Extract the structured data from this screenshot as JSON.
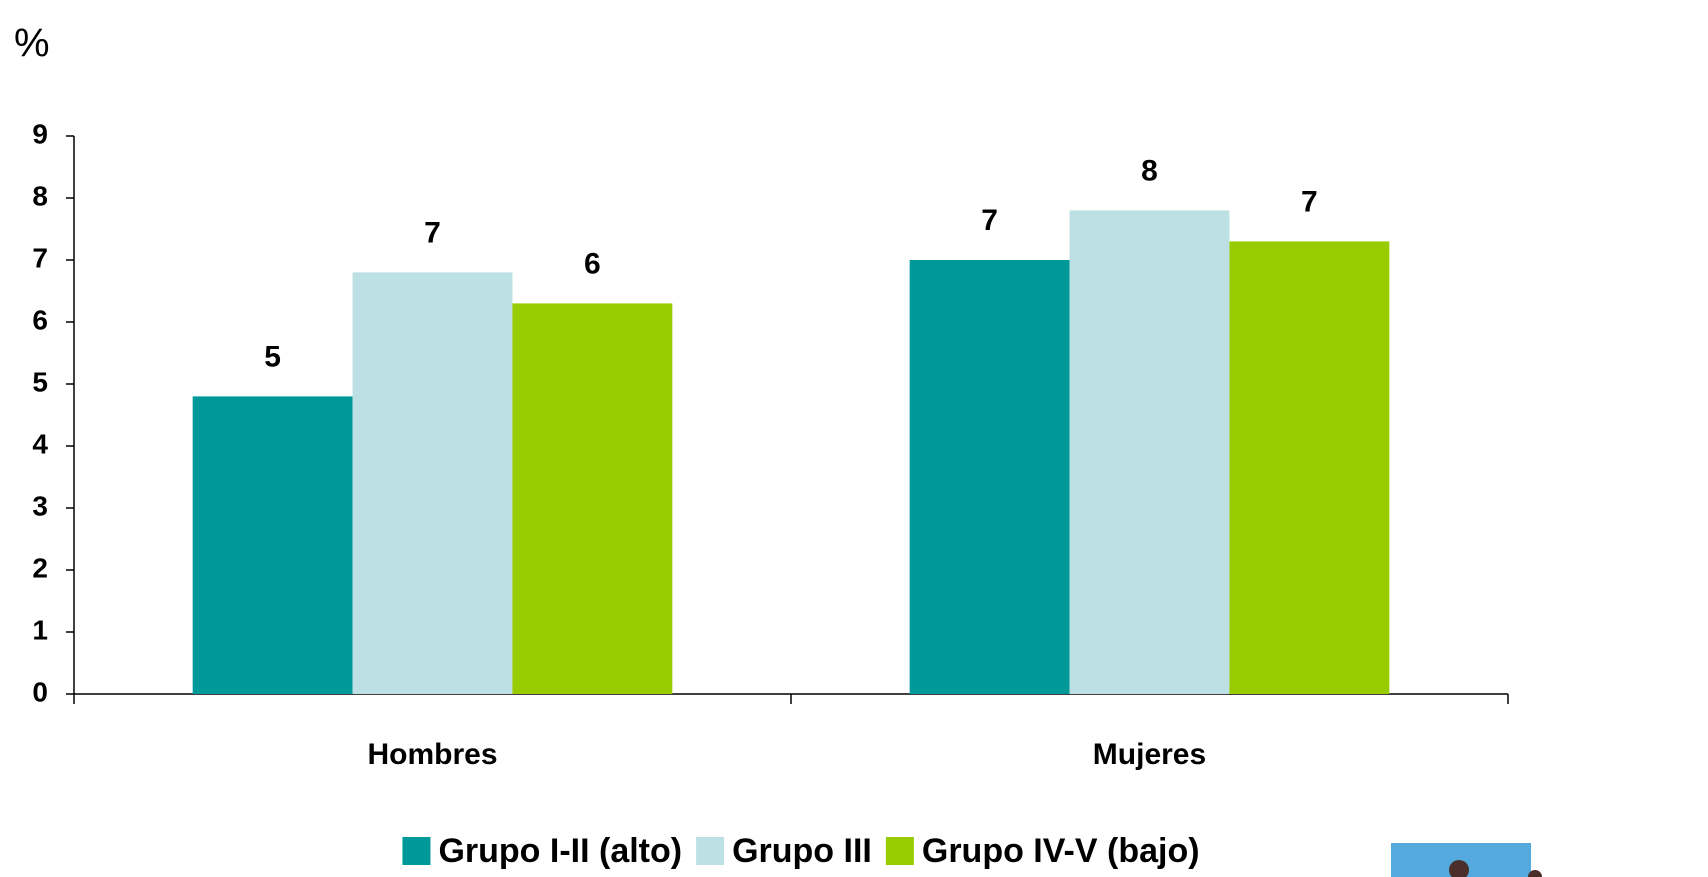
{
  "chart_data": {
    "type": "bar",
    "y_label": "%",
    "categories": [
      "Hombres",
      "Mujeres"
    ],
    "series": [
      {
        "name": "Grupo I-II (alto)",
        "color": "#009999",
        "values": [
          4.8,
          7.0
        ],
        "value_labels": [
          "5",
          "7"
        ]
      },
      {
        "name": "Grupo III",
        "color": "#bce0e3",
        "values": [
          6.8,
          7.8
        ],
        "value_labels": [
          "7",
          "8"
        ]
      },
      {
        "name": "Grupo IV-V (bajo)",
        "color": "#99cc00",
        "values": [
          6.3,
          7.3
        ],
        "value_labels": [
          "6",
          "7"
        ]
      }
    ],
    "ylim": [
      0,
      9
    ],
    "yticks": [
      0,
      1,
      2,
      3,
      4,
      5,
      6,
      7,
      8,
      9
    ],
    "grid": false,
    "legend": "bottom"
  }
}
